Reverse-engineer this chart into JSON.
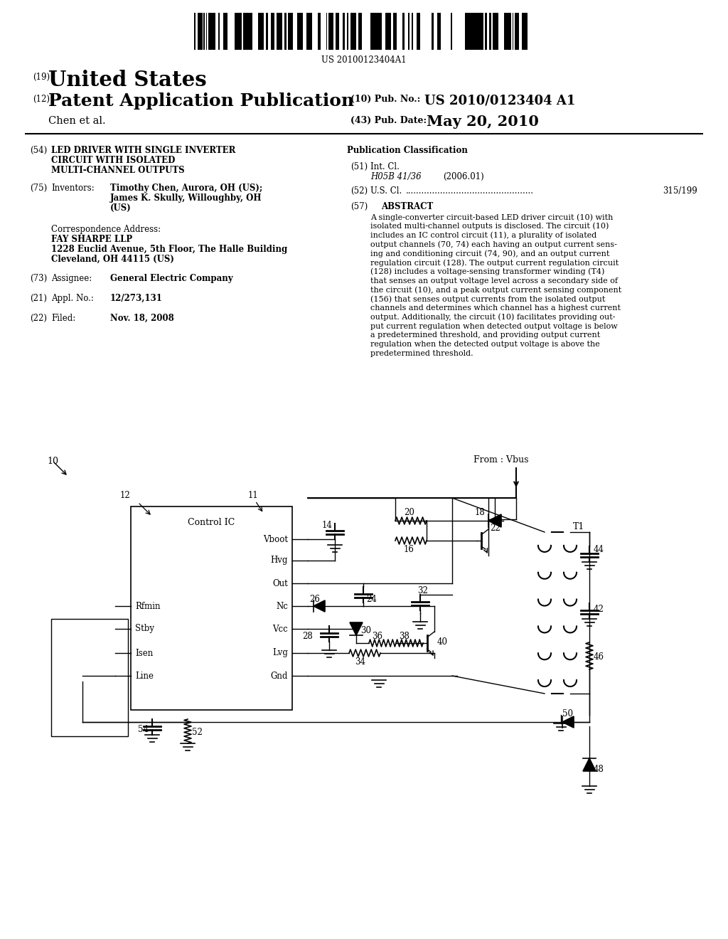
{
  "background_color": "#ffffff",
  "barcode_text": "US 20100123404A1",
  "header": {
    "country_num": "(19)",
    "country": "United States",
    "type_num": "(12)",
    "type": "Patent Application Publication",
    "author": "Chen et al.",
    "pub_num_label": "(10) Pub. No.:",
    "pub_num": "US 2010/0123404 A1",
    "date_label": "(43) Pub. Date:",
    "date": "May 20, 2010"
  },
  "left_col": {
    "title_num": "(54)",
    "title_line1": "LED DRIVER WITH SINGLE INVERTER",
    "title_line2": "CIRCUIT WITH ISOLATED",
    "title_line3": "MULTI-CHANNEL OUTPUTS",
    "inventors_num": "(75)",
    "inventors_label": "Inventors:",
    "inventors_line1": "Timothy Chen, Aurora, OH (US);",
    "inventors_line2": "James K. Skully, Willoughby, OH",
    "inventors_line3": "(US)",
    "corr_label": "Correspondence Address:",
    "corr_name": "FAY SHARPE LLP",
    "corr_addr1": "1228 Euclid Avenue, 5th Floor, The Halle Building",
    "corr_addr2": "Cleveland, OH 44115 (US)",
    "assignee_num": "(73)",
    "assignee_label": "Assignee:",
    "assignee": "General Electric Company",
    "appl_num": "(21)",
    "appl_no_label": "Appl. No.:",
    "appl_no": "12/273,131",
    "filed_num": "(22)",
    "filed_label": "Filed:",
    "filed": "Nov. 18, 2008"
  },
  "right_col": {
    "pub_class_title": "Publication Classification",
    "int_cl_num": "(51)",
    "int_cl_label": "Int. Cl.",
    "int_cl_class": "H05B 41/36",
    "int_cl_year": "(2006.01)",
    "us_cl_num": "(52)",
    "us_cl_label": "U.S. Cl.",
    "us_cl_val": "315/199",
    "abstract_num": "(57)",
    "abstract_title": "ABSTRACT",
    "abstract_lines": [
      "A single-converter circuit-based LED driver circuit (10) with",
      "isolated multi-channel outputs is disclosed. The circuit (10)",
      "includes an IC control circuit (11), a plurality of isolated",
      "output channels (70, 74) each having an output current sens-",
      "ing and conditioning circuit (74, 90), and an output current",
      "regulation circuit (128). The output current regulation circuit",
      "(128) includes a voltage-sensing transformer winding (T4)",
      "that senses an output voltage level across a secondary side of",
      "the circuit (10), and a peak output current sensing component",
      "(156) that senses output currents from the isolated output",
      "channels and determines which channel has a highest current",
      "output. Additionally, the circuit (10) facilitates providing out-",
      "put current regulation when detected output voltage is below",
      "a predetermined threshold, and providing output current",
      "regulation when the detected output voltage is above the",
      "predetermined threshold."
    ]
  },
  "diagram": {
    "label_10": "10",
    "label_from_vbus": "From : Vbus",
    "label_11": "11",
    "label_12": "12",
    "label_control_ic": "Control IC",
    "label_14": "14",
    "label_vboot": "Vboot",
    "label_hvg": "Hvg",
    "label_out": "Out",
    "label_nc": "Nc",
    "label_vcc": "Vcc",
    "label_lvg": "Lvg",
    "label_gnd": "Gnd",
    "label_rfmin": "Rfmin",
    "label_stby": "Stby",
    "label_isen": "Isen",
    "label_line": "Line",
    "label_16": "16",
    "label_18": "18",
    "label_20": "20",
    "label_22": "22",
    "label_24": "24",
    "label_26": "26",
    "label_28": "28",
    "label_30": "30",
    "label_32": "32",
    "label_34": "34",
    "label_36": "36",
    "label_38": "38",
    "label_40": "40",
    "label_t1": "T1",
    "label_42": "42",
    "label_44": "44",
    "label_46": "46",
    "label_48": "48",
    "label_50": "50",
    "label_52": "52",
    "label_54": "54"
  }
}
